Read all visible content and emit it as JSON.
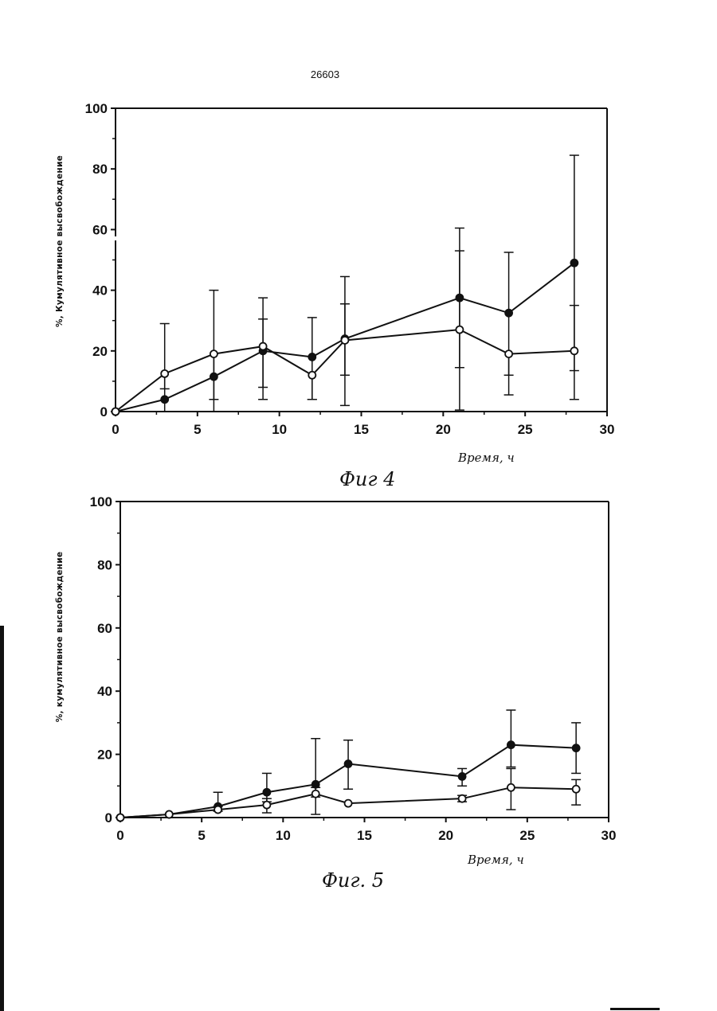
{
  "page": {
    "number": "26603"
  },
  "chart_data": [
    {
      "type": "line",
      "caption": "Фиг 4",
      "xlabel": "Время, ч",
      "ylabel": "%, Кумулятивное высвобождение",
      "xlim": [
        0,
        30
      ],
      "ylim": [
        0,
        100
      ],
      "xticks": [
        "0",
        "5",
        "10",
        "15",
        "20",
        "25",
        "30"
      ],
      "yticks": [
        "0",
        "20",
        "40",
        "60",
        "80",
        "100"
      ],
      "series": [
        {
          "marker": "filled",
          "x": [
            0,
            3,
            6,
            9,
            12,
            14,
            21,
            24,
            28
          ],
          "y": [
            0,
            4,
            11.5,
            20,
            18,
            24,
            37.5,
            32.5,
            49
          ],
          "err_low": [
            0,
            4,
            11.5,
            16,
            14,
            22,
            37,
            27,
            45
          ],
          "err_high": [
            0,
            25,
            28.5,
            17.5,
            13,
            20.5,
            23,
            20,
            35.5
          ]
        },
        {
          "marker": "open",
          "x": [
            0,
            3,
            6,
            9,
            12,
            14,
            21,
            24,
            28
          ],
          "y": [
            0,
            12.5,
            19,
            21.5,
            12,
            23.5,
            27,
            19,
            20
          ],
          "err_low": [
            0,
            5,
            15,
            13.5,
            8,
            11.5,
            12.5,
            7,
            6.5
          ],
          "err_high": [
            0,
            0,
            0,
            9,
            0,
            12,
            26,
            0,
            15
          ]
        }
      ]
    },
    {
      "type": "line",
      "caption": "Фиг. 5",
      "xlabel": "Время, ч",
      "ylabel": "%, кумулятивное высвобождение",
      "xlim": [
        0,
        30
      ],
      "ylim": [
        0,
        100
      ],
      "xticks": [
        "0",
        "5",
        "10",
        "15",
        "20",
        "25",
        "30"
      ],
      "yticks": [
        "0",
        "20",
        "40",
        "60",
        "80",
        "100"
      ],
      "series": [
        {
          "marker": "filled",
          "x": [
            0,
            3,
            6,
            9,
            12,
            14,
            21,
            24,
            28
          ],
          "y": [
            0,
            1,
            3.5,
            8,
            10.5,
            17,
            13,
            23,
            22
          ],
          "err_low": [
            0,
            0,
            1.5,
            3,
            4,
            8,
            3,
            7,
            8
          ],
          "err_high": [
            0,
            0,
            4.5,
            6,
            14.5,
            7.5,
            2.5,
            11,
            8
          ]
        },
        {
          "marker": "open",
          "x": [
            0,
            3,
            6,
            9,
            12,
            14,
            21,
            24,
            28
          ],
          "y": [
            0,
            1,
            2.5,
            4,
            7.5,
            4.5,
            6,
            9.5,
            9
          ],
          "err_low": [
            0,
            0,
            0,
            2.5,
            6.5,
            0,
            1,
            7,
            5
          ],
          "err_high": [
            0,
            0,
            1,
            2,
            2,
            0,
            1,
            6,
            3
          ]
        }
      ]
    }
  ]
}
